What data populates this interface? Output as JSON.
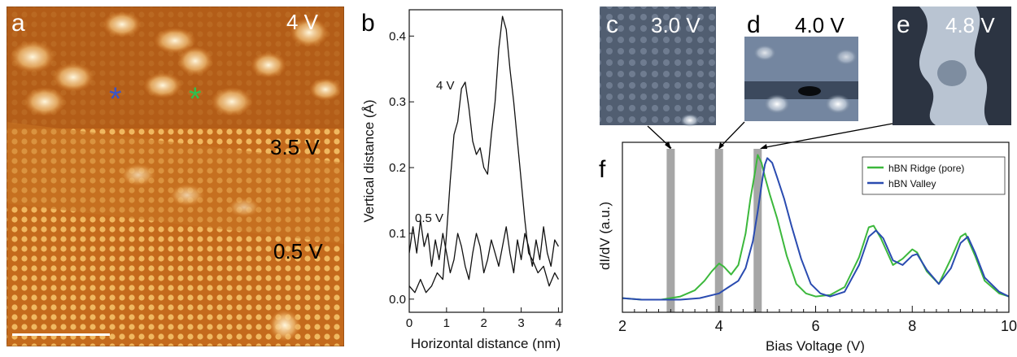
{
  "panels": {
    "a": {
      "letter": "a",
      "labels": [
        "4 V",
        "3.5 V",
        "0.5 V"
      ],
      "markers": {
        "blue_star": "*",
        "green_star": "*"
      }
    },
    "b": {
      "letter": "b"
    },
    "c": {
      "letter": "c",
      "voltage": "3.0 V"
    },
    "d": {
      "letter": "d",
      "voltage": "4.0 V"
    },
    "e": {
      "letter": "e",
      "voltage": "4.8 V"
    },
    "f": {
      "letter": "f"
    }
  },
  "colors": {
    "ridge": "#3cb83c",
    "valley": "#2a4bb0",
    "marker_band": "#a6a6a6",
    "stm_orange": "#d9822b",
    "stm_gray": "#6f7f93"
  },
  "chart_data": [
    {
      "type": "line",
      "panel": "b",
      "xlabel": "Horizontal distance (nm)",
      "ylabel": "Vertical distance (Å)",
      "xlim": [
        0,
        4.1
      ],
      "ylim": [
        -0.02,
        0.44
      ],
      "xticks": [
        0,
        1,
        2,
        3,
        4
      ],
      "yticks": [
        0.0,
        0.1,
        0.2,
        0.3,
        0.4
      ],
      "yticklabels": [
        "0.0",
        "0.1",
        "0.2",
        "0.3",
        "0.4"
      ],
      "series": [
        {
          "name": "4 V",
          "x": [
            0,
            0.15,
            0.3,
            0.45,
            0.6,
            0.75,
            0.9,
            1.0,
            1.1,
            1.2,
            1.3,
            1.4,
            1.5,
            1.6,
            1.7,
            1.8,
            1.9,
            2.0,
            2.1,
            2.2,
            2.3,
            2.4,
            2.5,
            2.6,
            2.7,
            2.8,
            2.9,
            3.0,
            3.1,
            3.2,
            3.3,
            3.45,
            3.6,
            3.75,
            3.9,
            4.0
          ],
          "y": [
            0.02,
            0.01,
            0.03,
            0.01,
            0.02,
            0.04,
            0.03,
            0.1,
            0.18,
            0.25,
            0.27,
            0.32,
            0.33,
            0.29,
            0.24,
            0.22,
            0.23,
            0.2,
            0.19,
            0.25,
            0.3,
            0.38,
            0.43,
            0.41,
            0.35,
            0.3,
            0.24,
            0.18,
            0.12,
            0.07,
            0.06,
            0.04,
            0.05,
            0.02,
            0.04,
            0.03
          ]
        },
        {
          "name": "0.5 V",
          "x": [
            0,
            0.1,
            0.2,
            0.3,
            0.4,
            0.5,
            0.6,
            0.7,
            0.8,
            0.9,
            1.0,
            1.1,
            1.2,
            1.3,
            1.4,
            1.5,
            1.6,
            1.7,
            1.8,
            1.9,
            2.0,
            2.1,
            2.2,
            2.3,
            2.4,
            2.5,
            2.6,
            2.7,
            2.8,
            2.9,
            3.0,
            3.1,
            3.2,
            3.3,
            3.4,
            3.5,
            3.6,
            3.7,
            3.8,
            3.9,
            4.0
          ],
          "y": [
            0.07,
            0.11,
            0.07,
            0.12,
            0.08,
            0.1,
            0.05,
            0.09,
            0.06,
            0.1,
            0.07,
            0.04,
            0.06,
            0.1,
            0.08,
            0.05,
            0.03,
            0.07,
            0.1,
            0.08,
            0.04,
            0.06,
            0.09,
            0.07,
            0.05,
            0.08,
            0.11,
            0.07,
            0.04,
            0.09,
            0.06,
            0.1,
            0.08,
            0.05,
            0.09,
            0.06,
            0.11,
            0.07,
            0.05,
            0.09,
            0.08
          ]
        }
      ]
    },
    {
      "type": "line",
      "panel": "f",
      "xlabel": "Bias Voltage (V)",
      "ylabel": "dI/dV (a.u.)",
      "xlim": [
        2,
        10
      ],
      "ylim": [
        0,
        1.08
      ],
      "xticks": [
        2,
        4,
        6,
        8,
        10
      ],
      "grid": false,
      "legend_position": "top-right",
      "highlight_bands": [
        3.0,
        4.0,
        4.8
      ],
      "series": [
        {
          "name": "hBN Ridge (pore)",
          "x": [
            2.0,
            2.4,
            2.8,
            3.2,
            3.5,
            3.7,
            3.85,
            4.0,
            4.1,
            4.25,
            4.4,
            4.55,
            4.65,
            4.75,
            4.8,
            4.88,
            4.95,
            5.05,
            5.2,
            5.4,
            5.6,
            5.8,
            6.0,
            6.3,
            6.6,
            6.9,
            7.1,
            7.2,
            7.35,
            7.6,
            7.8,
            8.0,
            8.1,
            8.3,
            8.55,
            8.8,
            9.0,
            9.1,
            9.3,
            9.5,
            9.8,
            10.0
          ],
          "y": [
            0.09,
            0.08,
            0.08,
            0.1,
            0.14,
            0.2,
            0.26,
            0.31,
            0.29,
            0.24,
            0.3,
            0.5,
            0.72,
            0.9,
            1.0,
            0.95,
            0.86,
            0.75,
            0.6,
            0.36,
            0.18,
            0.12,
            0.1,
            0.11,
            0.16,
            0.35,
            0.54,
            0.55,
            0.47,
            0.3,
            0.34,
            0.4,
            0.38,
            0.26,
            0.18,
            0.34,
            0.48,
            0.5,
            0.36,
            0.2,
            0.12,
            0.1
          ]
        },
        {
          "name": "hBN Valley",
          "x": [
            2.0,
            2.4,
            2.8,
            3.2,
            3.6,
            4.0,
            4.2,
            4.4,
            4.55,
            4.7,
            4.8,
            4.9,
            4.95,
            5.0,
            5.1,
            5.2,
            5.35,
            5.5,
            5.7,
            5.9,
            6.1,
            6.3,
            6.6,
            6.9,
            7.1,
            7.25,
            7.4,
            7.6,
            7.8,
            8.0,
            8.1,
            8.3,
            8.55,
            8.8,
            9.0,
            9.15,
            9.3,
            9.5,
            9.8,
            10.0
          ],
          "y": [
            0.09,
            0.08,
            0.08,
            0.08,
            0.09,
            0.12,
            0.16,
            0.2,
            0.28,
            0.45,
            0.64,
            0.85,
            0.94,
            0.98,
            0.95,
            0.86,
            0.72,
            0.55,
            0.34,
            0.18,
            0.12,
            0.1,
            0.13,
            0.3,
            0.48,
            0.52,
            0.47,
            0.33,
            0.3,
            0.36,
            0.37,
            0.27,
            0.18,
            0.28,
            0.44,
            0.48,
            0.38,
            0.22,
            0.13,
            0.1
          ]
        }
      ]
    }
  ]
}
